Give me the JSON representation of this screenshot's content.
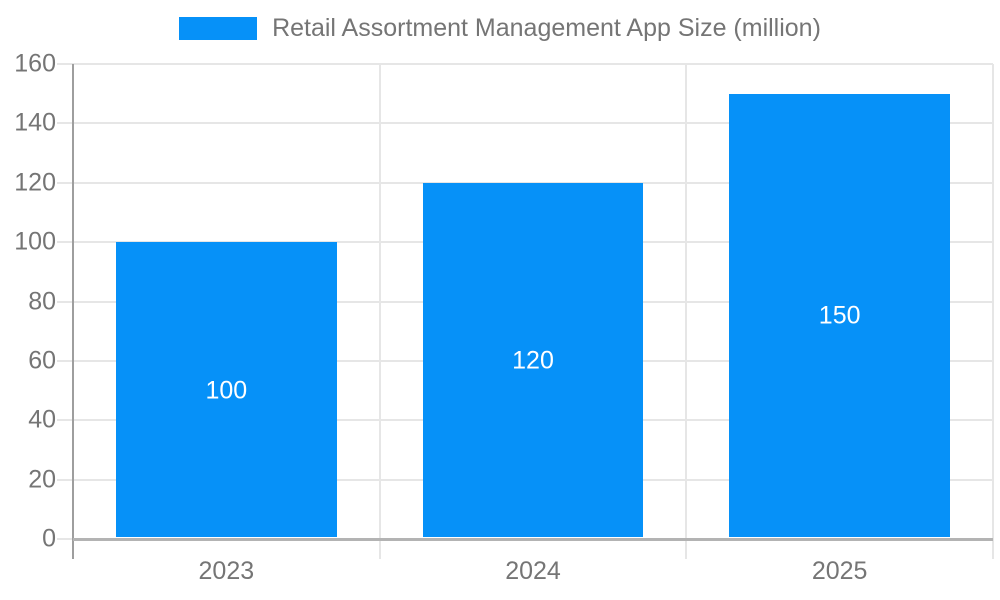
{
  "chart_data": {
    "type": "bar",
    "title": "Retail Assortment Management App Size (million)",
    "categories": [
      "2023",
      "2024",
      "2025"
    ],
    "values": [
      100,
      120,
      150
    ],
    "data_labels": [
      "100",
      "120",
      "150"
    ],
    "xlabel": "",
    "ylabel": "",
    "ylim": [
      0,
      160
    ],
    "yticks": [
      0,
      20,
      40,
      60,
      80,
      100,
      120,
      140,
      160
    ],
    "grid": true,
    "legend_position": "top",
    "legend_entries": [
      "Retail Assortment Management App Size (million)"
    ],
    "colors": {
      "bar": "#0691f8",
      "gridline": "#e6e6e6",
      "y_axis": "#9e9e9e",
      "x_axis": "#b3b3b3",
      "text": "#757575",
      "data_label": "#ffffff",
      "background": "#ffffff"
    }
  }
}
